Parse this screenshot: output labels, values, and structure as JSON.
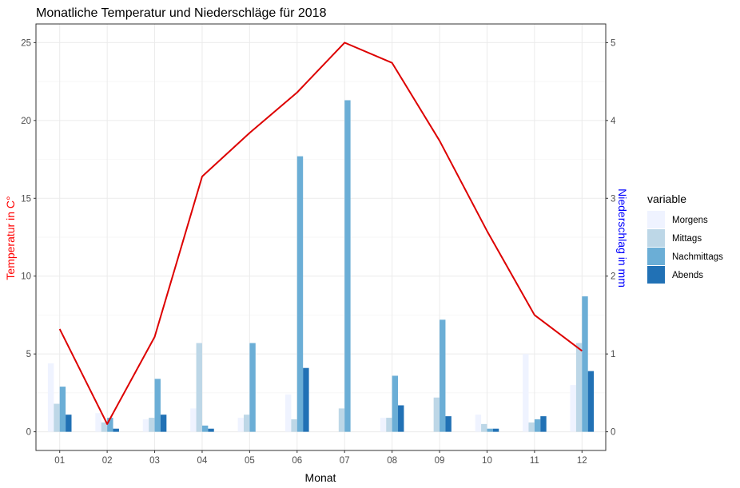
{
  "chart_data": {
    "type": "bar",
    "title": "Monatliche Temperatur und Niederschläge für 2018",
    "xlabel": "Monat",
    "ylabel_left": "Temperatur in C°",
    "ylabel_right": "Niederschlag in mm",
    "categories": [
      "01",
      "02",
      "03",
      "04",
      "05",
      "06",
      "07",
      "08",
      "09",
      "10",
      "11",
      "12"
    ],
    "y_left": {
      "lim": [
        -1.2,
        26.2
      ],
      "ticks": [
        0,
        5,
        10,
        15,
        20,
        25
      ]
    },
    "y_right": {
      "lim": [
        -0.24,
        5.24
      ],
      "ticks": [
        0,
        1,
        2,
        3,
        4,
        5
      ]
    },
    "grid": true,
    "legend_title": "variable",
    "legend_position": "right",
    "series": [
      {
        "name": "Morgens",
        "color": "#eff3ff",
        "values": [
          0.88,
          0.24,
          0.16,
          0.3,
          0.18,
          0.48,
          0,
          0.18,
          0,
          0.22,
          1.0,
          0.6
        ]
      },
      {
        "name": "Mittags",
        "color": "#bdd7e7",
        "values": [
          0.36,
          0.12,
          0.18,
          1.14,
          0.22,
          0.16,
          0.3,
          0.18,
          0.44,
          0.1,
          0.12,
          1.14
        ]
      },
      {
        "name": "Nachmittags",
        "color": "#6baed6",
        "values": [
          0.58,
          0.18,
          0.68,
          0.08,
          1.14,
          3.54,
          4.26,
          0.72,
          1.44,
          0.04,
          0.16,
          1.74
        ]
      },
      {
        "name": "Abends",
        "color": "#2171b5",
        "values": [
          0.22,
          0.04,
          0.22,
          0.04,
          0,
          0.82,
          0,
          0.34,
          0.2,
          0.04,
          0.2,
          0.78
        ]
      }
    ],
    "line": {
      "color": "#dd0000",
      "values": [
        6.6,
        0.5,
        6.1,
        16.4,
        19.2,
        21.8,
        25.0,
        23.7,
        18.7,
        12.9,
        7.5,
        5.2
      ]
    },
    "colors": {
      "left_axis_title": "#ff0000",
      "right_axis_title": "#0000ff"
    }
  }
}
